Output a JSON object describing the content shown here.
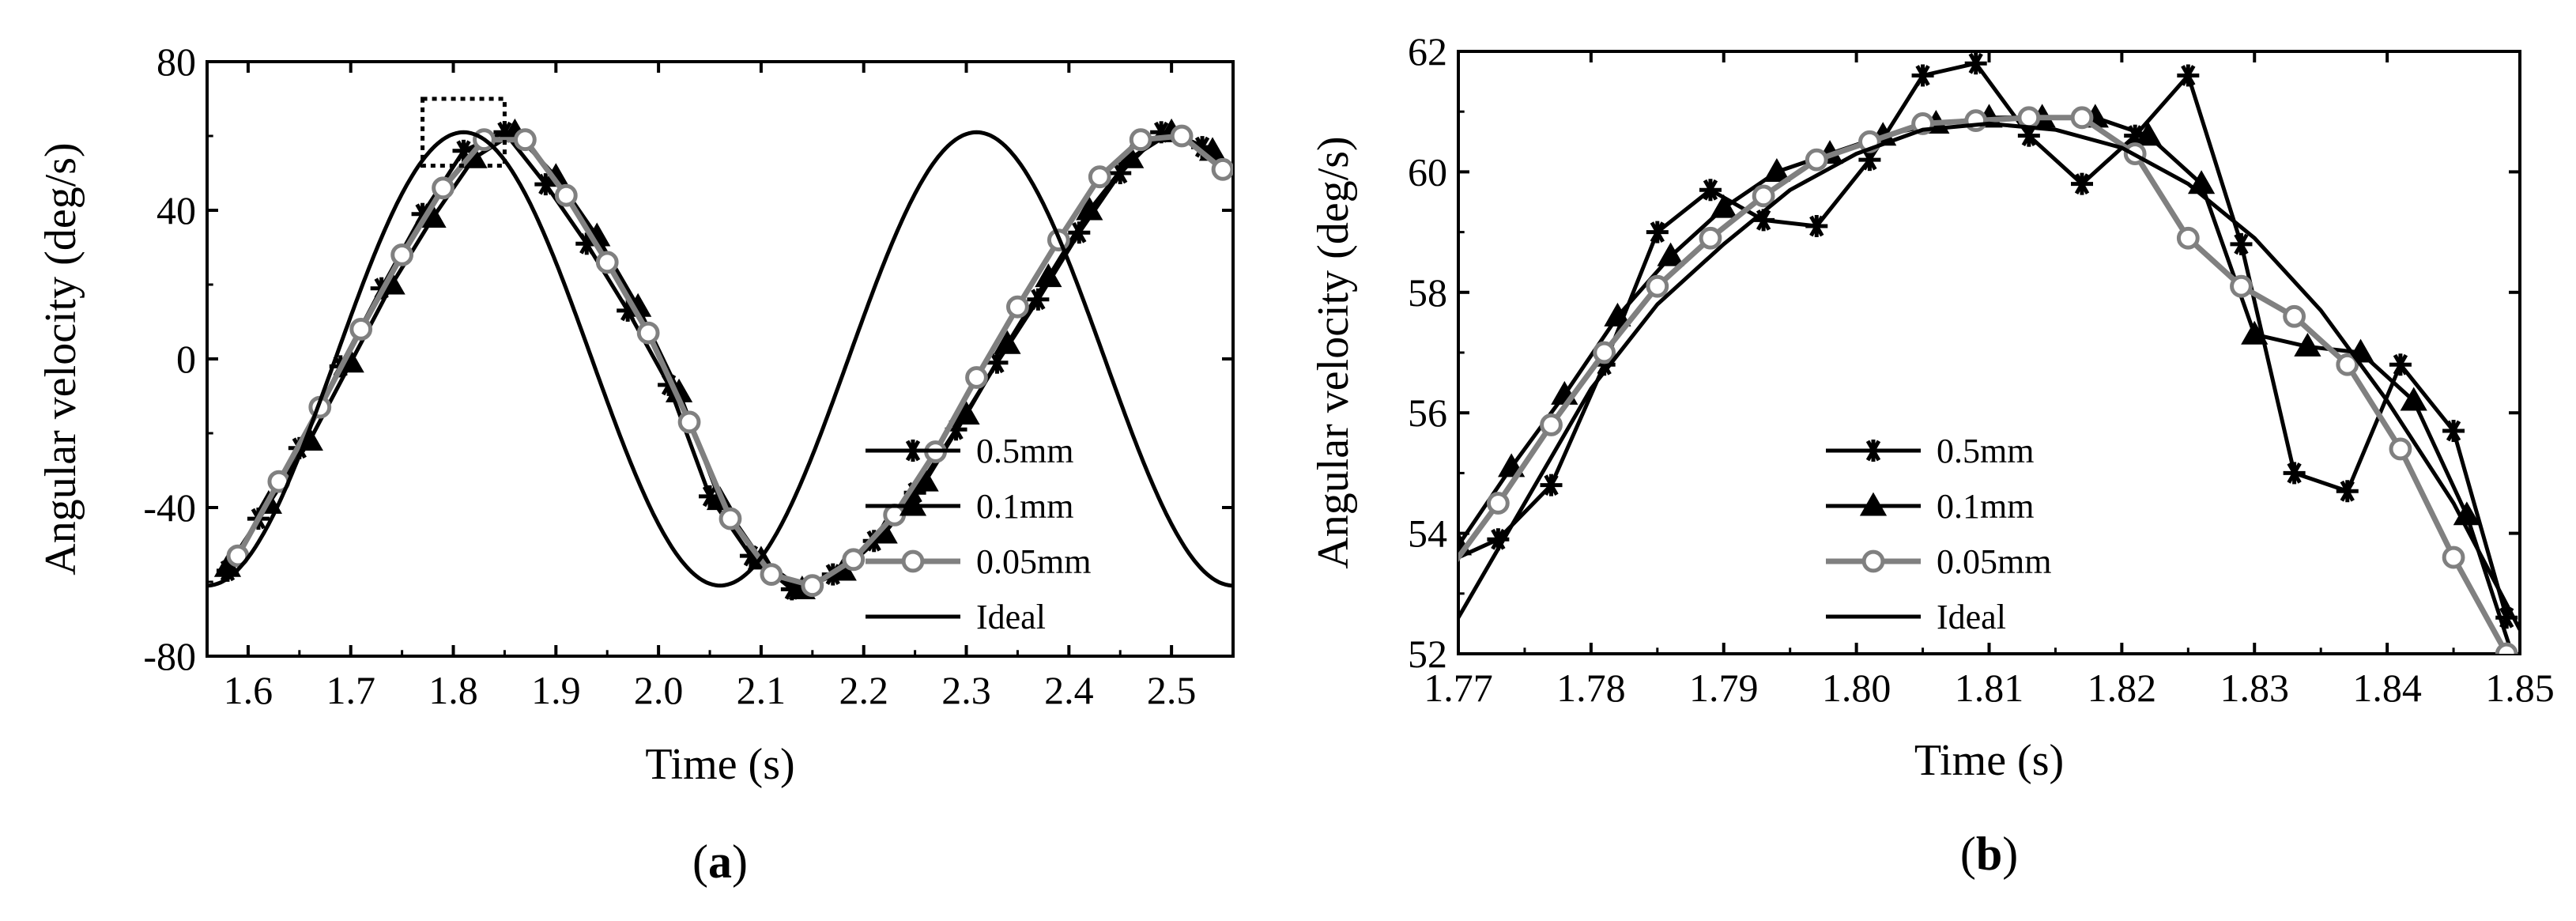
{
  "chart_data": [
    {
      "type": "line",
      "panel_label": "a",
      "xlabel": "Time (s)",
      "ylabel": "Angular velocity (deg/s)",
      "xlim": [
        1.56,
        2.56
      ],
      "ylim": [
        -80,
        80
      ],
      "xticks": [
        1.6,
        1.7,
        1.8,
        1.9,
        2.0,
        2.1,
        2.2,
        2.3,
        2.4,
        2.5
      ],
      "xtick_labels": [
        "1.6",
        "1.7",
        "1.8",
        "1.9",
        "2.0",
        "2.1",
        "2.2",
        "2.3",
        "2.4",
        "2.5"
      ],
      "yticks": [
        -80,
        -40,
        0,
        40,
        80
      ],
      "ytick_labels": [
        "-80",
        "-40",
        "0",
        "40",
        "80"
      ],
      "legend_position": "bottom-right",
      "annotation": "dotted zoom box around the peak near t = 1.81 s (approx. 1.77–1.85 s, 52–62 deg/s)",
      "series": [
        {
          "name": "0.5mm",
          "marker": "asterisk",
          "color": "#000000",
          "x": [
            1.58,
            1.61,
            1.65,
            1.69,
            1.73,
            1.77,
            1.81,
            1.85,
            1.89,
            1.93,
            1.97,
            2.01,
            2.05,
            2.09,
            2.13,
            2.17,
            2.21,
            2.25,
            2.29,
            2.33,
            2.37,
            2.41,
            2.45,
            2.49,
            2.53
          ],
          "y": [
            -57,
            -43,
            -24,
            -2,
            19,
            39,
            56,
            61,
            47,
            31,
            13,
            -7,
            -37,
            -53,
            -62,
            -58,
            -49,
            -36,
            -19,
            -1,
            16,
            34,
            50,
            61,
            57
          ]
        },
        {
          "name": "0.1mm",
          "marker": "triangle",
          "color": "#000000",
          "x": [
            1.58,
            1.62,
            1.66,
            1.7,
            1.74,
            1.78,
            1.82,
            1.86,
            1.9,
            1.94,
            1.98,
            2.02,
            2.06,
            2.1,
            2.14,
            2.18,
            2.22,
            2.26,
            2.3,
            2.34,
            2.38,
            2.42,
            2.46,
            2.5,
            2.54
          ],
          "y": [
            -56,
            -39,
            -22,
            -1,
            20,
            38,
            54,
            61,
            49,
            33,
            14,
            -9,
            -38,
            -54,
            -62,
            -57,
            -47,
            -33,
            -15,
            4,
            22,
            40,
            54,
            61,
            56
          ]
        },
        {
          "name": "0.05mm",
          "marker": "circle",
          "color": "#808080",
          "x": [
            1.59,
            1.63,
            1.67,
            1.71,
            1.75,
            1.79,
            1.83,
            1.87,
            1.91,
            1.95,
            1.99,
            2.03,
            2.07,
            2.11,
            2.15,
            2.19,
            2.23,
            2.27,
            2.31,
            2.35,
            2.39,
            2.43,
            2.47,
            2.51,
            2.55
          ],
          "y": [
            -53,
            -33,
            -13,
            8,
            28,
            46,
            59,
            59,
            44,
            26,
            7,
            -17,
            -43,
            -58,
            -61,
            -54,
            -42,
            -25,
            -5,
            14,
            32,
            49,
            59,
            60,
            51
          ]
        },
        {
          "name": "Ideal",
          "marker": "none",
          "color": "#000000",
          "function": "61*sin(2*pi*(t-1.81)/0.5 + pi/2)"
        }
      ]
    },
    {
      "type": "line",
      "panel_label": "b",
      "xlabel": "Time (s)",
      "ylabel": "Angular velocity (deg/s)",
      "xlim": [
        1.77,
        1.85
      ],
      "ylim": [
        52,
        62
      ],
      "xticks": [
        1.77,
        1.78,
        1.79,
        1.8,
        1.81,
        1.82,
        1.83,
        1.84,
        1.85
      ],
      "xtick_labels": [
        "1.77",
        "1.78",
        "1.79",
        "1.80",
        "1.81",
        "1.82",
        "1.83",
        "1.84",
        "1.85"
      ],
      "yticks": [
        52,
        54,
        56,
        58,
        60,
        62
      ],
      "ytick_labels": [
        "52",
        "54",
        "56",
        "58",
        "60",
        "62"
      ],
      "legend_position": "bottom-left",
      "series": [
        {
          "name": "0.5mm",
          "marker": "asterisk",
          "color": "#000000",
          "x": [
            1.769,
            1.773,
            1.777,
            1.781,
            1.785,
            1.789,
            1.793,
            1.797,
            1.801,
            1.805,
            1.809,
            1.813,
            1.817,
            1.821,
            1.825,
            1.829,
            1.833,
            1.837,
            1.841,
            1.845,
            1.849
          ],
          "y": [
            53.5,
            53.9,
            54.8,
            56.8,
            59.0,
            59.7,
            59.2,
            59.1,
            60.2,
            61.6,
            61.8,
            60.6,
            59.8,
            60.6,
            61.6,
            58.8,
            55.0,
            54.7,
            56.8,
            55.7,
            52.6
          ]
        },
        {
          "name": "0.1mm",
          "marker": "triangle",
          "color": "#000000",
          "x": [
            1.77,
            1.774,
            1.778,
            1.782,
            1.786,
            1.79,
            1.794,
            1.798,
            1.802,
            1.806,
            1.81,
            1.814,
            1.818,
            1.822,
            1.826,
            1.83,
            1.834,
            1.838,
            1.842,
            1.846,
            1.85
          ],
          "y": [
            53.8,
            55.1,
            56.3,
            57.6,
            58.6,
            59.4,
            60.0,
            60.3,
            60.6,
            60.8,
            60.9,
            60.9,
            60.9,
            60.6,
            59.8,
            57.3,
            57.1,
            57.0,
            56.2,
            54.3,
            51.6
          ]
        },
        {
          "name": "0.05mm",
          "marker": "circle",
          "color": "#808080",
          "x": [
            1.769,
            1.773,
            1.777,
            1.781,
            1.785,
            1.789,
            1.793,
            1.797,
            1.801,
            1.805,
            1.809,
            1.813,
            1.817,
            1.821,
            1.825,
            1.829,
            1.833,
            1.837,
            1.841,
            1.845,
            1.849
          ],
          "y": [
            53.3,
            54.5,
            55.8,
            57.0,
            58.1,
            58.9,
            59.6,
            60.2,
            60.5,
            60.8,
            60.85,
            60.9,
            60.9,
            60.3,
            58.9,
            58.1,
            57.6,
            56.8,
            55.4,
            53.6,
            52.0
          ]
        },
        {
          "name": "Ideal",
          "marker": "none",
          "color": "#000000",
          "x": [
            1.77,
            1.775,
            1.78,
            1.785,
            1.79,
            1.795,
            1.8,
            1.805,
            1.81,
            1.815,
            1.82,
            1.825,
            1.83,
            1.835,
            1.84,
            1.845,
            1.85
          ],
          "y": [
            52.6,
            54.5,
            56.4,
            57.8,
            58.8,
            59.7,
            60.3,
            60.7,
            60.8,
            60.7,
            60.4,
            59.8,
            58.9,
            57.7,
            56.2,
            54.5,
            52.4
          ]
        }
      ]
    }
  ]
}
